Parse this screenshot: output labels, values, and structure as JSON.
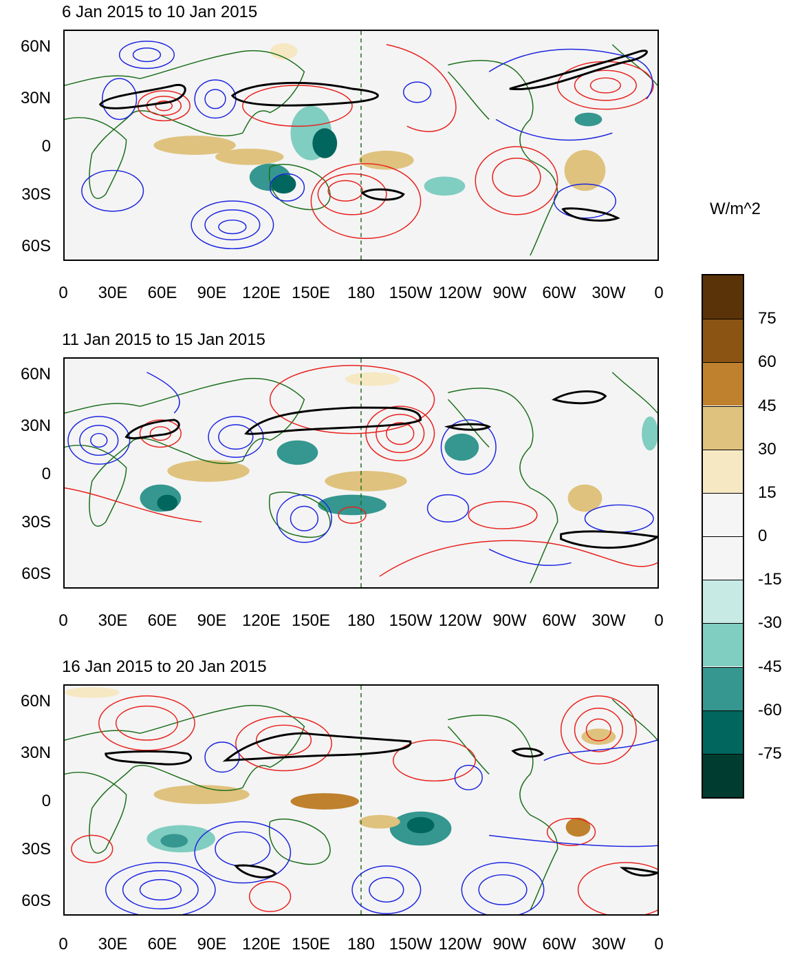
{
  "panels": [
    {
      "title": "6 Jan 2015 to 10 Jan 2015"
    },
    {
      "title": "11 Jan 2015 to 15 Jan 2015"
    },
    {
      "title": "16 Jan 2015 to 20 Jan 2015"
    }
  ],
  "lat_labels": [
    "60N",
    "30N",
    "0",
    "30S",
    "60S"
  ],
  "lon_labels": [
    "0",
    "30E",
    "60E",
    "90E",
    "120E",
    "150E",
    "180",
    "150W",
    "120W",
    "90W",
    "60W",
    "30W",
    "0"
  ],
  "colorbar": {
    "units": "W/m^2",
    "labels": [
      "75",
      "60",
      "45",
      "30",
      "15",
      "0",
      "-15",
      "-30",
      "-45",
      "-60",
      "-75"
    ],
    "colors": [
      "#5a3308",
      "#8c5412",
      "#bf812d",
      "#dfc27d",
      "#f6e8c3",
      "#f5f5f5",
      "#f5f5f5",
      "#c7eae5",
      "#80cdc1",
      "#35978f",
      "#01665e",
      "#003c30"
    ]
  },
  "colors": {
    "positive_contour": "#e8201c",
    "negative_contour": "#1c24e0",
    "highlight_contour": "#000000",
    "coastline": "#1a6e1a",
    "background": "#f4f4f4"
  }
}
